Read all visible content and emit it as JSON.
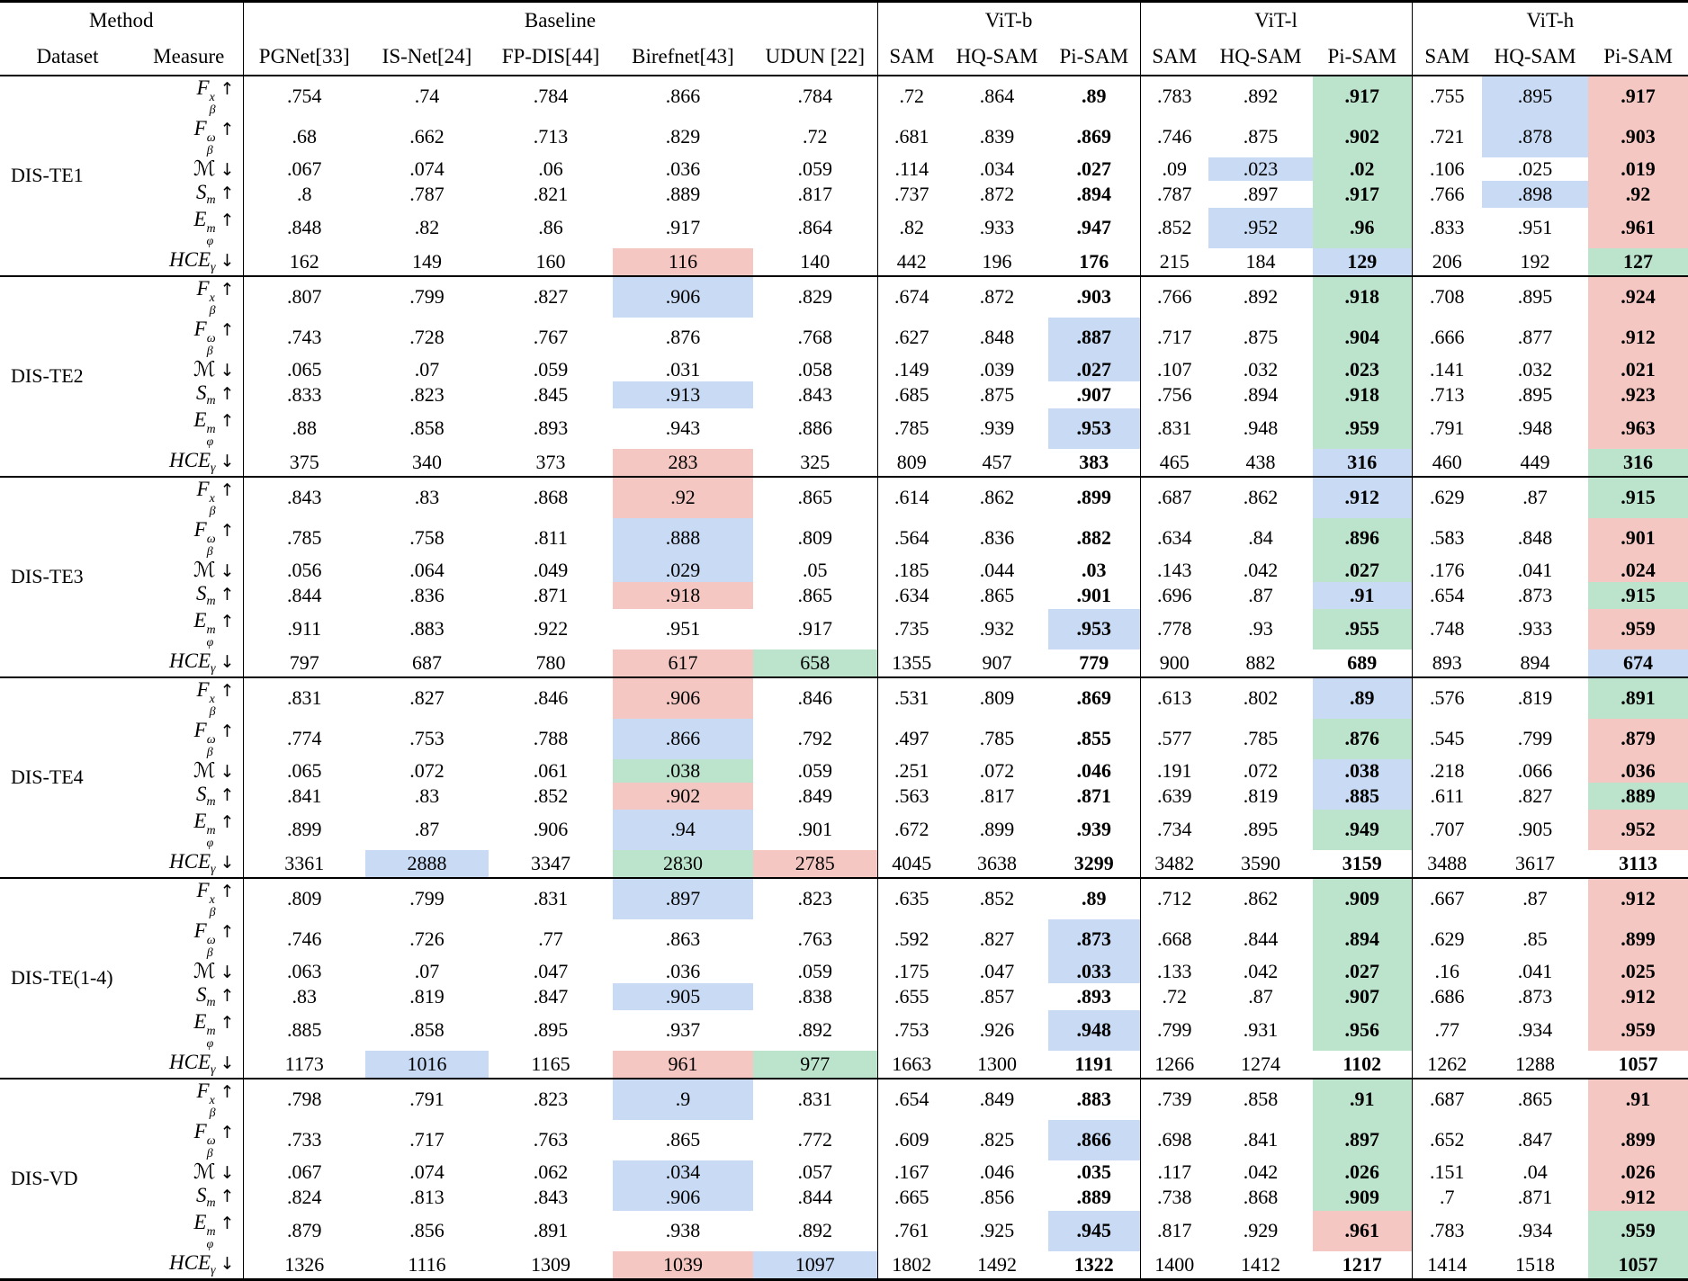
{
  "header": {
    "method": "Method",
    "dataset": "Dataset",
    "measure": "Measure",
    "emphasized_method": "Pi-SAM",
    "groups": [
      {
        "label": "Baseline",
        "cols": [
          "PGNet[33]",
          "IS-Net[24]",
          "FP-DIS[44]",
          "Birefnet[43]",
          "UDUN [22]"
        ]
      },
      {
        "label": "ViT-b",
        "cols": [
          "SAM",
          "HQ-SAM",
          "Pi-SAM"
        ]
      },
      {
        "label": "ViT-l",
        "cols": [
          "SAM",
          "HQ-SAM",
          "Pi-SAM"
        ]
      },
      {
        "label": "ViT-h",
        "cols": [
          "SAM",
          "HQ-SAM",
          "Pi-SAM"
        ]
      }
    ]
  },
  "measures": [
    {
      "base": "F",
      "sup": "x",
      "sub": "β",
      "arrow": "↑"
    },
    {
      "base": "F",
      "sup": "ω",
      "sub": "β",
      "arrow": "↑"
    },
    {
      "base": "ℳ",
      "sup": "",
      "sub": "",
      "arrow": "↓"
    },
    {
      "base": "S",
      "sup": "",
      "sub": "m",
      "arrow": "↑"
    },
    {
      "base": "E",
      "sup": "m",
      "sub": "φ",
      "arrow": "↑"
    },
    {
      "base": "HCE",
      "sup": "",
      "sub": "γ",
      "arrow": "↓"
    }
  ],
  "highlight_colors": {
    "red": "#f4c7c2",
    "green": "#bce3cc",
    "blue": "#c8daf4"
  },
  "highlight_meaning": {
    "red": "best",
    "green": "second best",
    "blue": "third best"
  },
  "blocks": [
    {
      "dataset": "DIS-TE1",
      "rows": [
        {
          "values": [
            ".754",
            ".74",
            ".784",
            ".866",
            ".784",
            ".72",
            ".864",
            ".89",
            ".783",
            ".892",
            ".917",
            ".755",
            ".895",
            ".917"
          ],
          "hl": {
            "10": "green",
            "12": "blue",
            "13": "red"
          }
        },
        {
          "values": [
            ".68",
            ".662",
            ".713",
            ".829",
            ".72",
            ".681",
            ".839",
            ".869",
            ".746",
            ".875",
            ".902",
            ".721",
            ".878",
            ".903"
          ],
          "hl": {
            "10": "green",
            "12": "blue",
            "13": "red"
          }
        },
        {
          "values": [
            ".067",
            ".074",
            ".06",
            ".036",
            ".059",
            ".114",
            ".034",
            ".027",
            ".09",
            ".023",
            ".02",
            ".106",
            ".025",
            ".019"
          ],
          "hl": {
            "9": "blue",
            "10": "green",
            "13": "red"
          }
        },
        {
          "values": [
            ".8",
            ".787",
            ".821",
            ".889",
            ".817",
            ".737",
            ".872",
            ".894",
            ".787",
            ".897",
            ".917",
            ".766",
            ".898",
            ".92"
          ],
          "hl": {
            "10": "green",
            "12": "blue",
            "13": "red"
          }
        },
        {
          "values": [
            ".848",
            ".82",
            ".86",
            ".917",
            ".864",
            ".82",
            ".933",
            ".947",
            ".852",
            ".952",
            ".96",
            ".833",
            ".951",
            ".961"
          ],
          "hl": {
            "9": "blue",
            "10": "green",
            "13": "red"
          }
        },
        {
          "values": [
            "162",
            "149",
            "160",
            "116",
            "140",
            "442",
            "196",
            "176",
            "215",
            "184",
            "129",
            "206",
            "192",
            "127"
          ],
          "hl": {
            "3": "red",
            "10": "blue",
            "13": "green"
          }
        }
      ]
    },
    {
      "dataset": "DIS-TE2",
      "rows": [
        {
          "values": [
            ".807",
            ".799",
            ".827",
            ".906",
            ".829",
            ".674",
            ".872",
            ".903",
            ".766",
            ".892",
            ".918",
            ".708",
            ".895",
            ".924"
          ],
          "hl": {
            "3": "blue",
            "10": "green",
            "13": "red"
          }
        },
        {
          "values": [
            ".743",
            ".728",
            ".767",
            ".876",
            ".768",
            ".627",
            ".848",
            ".887",
            ".717",
            ".875",
            ".904",
            ".666",
            ".877",
            ".912"
          ],
          "hl": {
            "7": "blue",
            "10": "green",
            "13": "red"
          }
        },
        {
          "values": [
            ".065",
            ".07",
            ".059",
            ".031",
            ".058",
            ".149",
            ".039",
            ".027",
            ".107",
            ".032",
            ".023",
            ".141",
            ".032",
            ".021"
          ],
          "hl": {
            "7": "blue",
            "10": "green",
            "13": "red"
          }
        },
        {
          "values": [
            ".833",
            ".823",
            ".845",
            ".913",
            ".843",
            ".685",
            ".875",
            ".907",
            ".756",
            ".894",
            ".918",
            ".713",
            ".895",
            ".923"
          ],
          "hl": {
            "3": "blue",
            "10": "green",
            "13": "red"
          }
        },
        {
          "values": [
            ".88",
            ".858",
            ".893",
            ".943",
            ".886",
            ".785",
            ".939",
            ".953",
            ".831",
            ".948",
            ".959",
            ".791",
            ".948",
            ".963"
          ],
          "hl": {
            "7": "blue",
            "10": "green",
            "13": "red"
          }
        },
        {
          "values": [
            "375",
            "340",
            "373",
            "283",
            "325",
            "809",
            "457",
            "383",
            "465",
            "438",
            "316",
            "460",
            "449",
            "316"
          ],
          "hl": {
            "3": "red",
            "10": "blue",
            "13": "green"
          }
        }
      ]
    },
    {
      "dataset": "DIS-TE3",
      "rows": [
        {
          "values": [
            ".843",
            ".83",
            ".868",
            ".92",
            ".865",
            ".614",
            ".862",
            ".899",
            ".687",
            ".862",
            ".912",
            ".629",
            ".87",
            ".915"
          ],
          "hl": {
            "3": "red",
            "10": "blue",
            "13": "green"
          }
        },
        {
          "values": [
            ".785",
            ".758",
            ".811",
            ".888",
            ".809",
            ".564",
            ".836",
            ".882",
            ".634",
            ".84",
            ".896",
            ".583",
            ".848",
            ".901"
          ],
          "hl": {
            "3": "blue",
            "10": "green",
            "13": "red"
          }
        },
        {
          "values": [
            ".056",
            ".064",
            ".049",
            ".029",
            ".05",
            ".185",
            ".044",
            ".03",
            ".143",
            ".042",
            ".027",
            ".176",
            ".041",
            ".024"
          ],
          "hl": {
            "3": "blue",
            "10": "green",
            "13": "red"
          }
        },
        {
          "values": [
            ".844",
            ".836",
            ".871",
            ".918",
            ".865",
            ".634",
            ".865",
            ".901",
            ".696",
            ".87",
            ".91",
            ".654",
            ".873",
            ".915"
          ],
          "hl": {
            "3": "red",
            "10": "blue",
            "13": "green"
          }
        },
        {
          "values": [
            ".911",
            ".883",
            ".922",
            ".951",
            ".917",
            ".735",
            ".932",
            ".953",
            ".778",
            ".93",
            ".955",
            ".748",
            ".933",
            ".959"
          ],
          "hl": {
            "7": "blue",
            "10": "green",
            "13": "red"
          }
        },
        {
          "values": [
            "797",
            "687",
            "780",
            "617",
            "658",
            "1355",
            "907",
            "779",
            "900",
            "882",
            "689",
            "893",
            "894",
            "674"
          ],
          "hl": {
            "3": "red",
            "4": "green",
            "13": "blue"
          }
        }
      ]
    },
    {
      "dataset": "DIS-TE4",
      "rows": [
        {
          "values": [
            ".831",
            ".827",
            ".846",
            ".906",
            ".846",
            ".531",
            ".809",
            ".869",
            ".613",
            ".802",
            ".89",
            ".576",
            ".819",
            ".891"
          ],
          "hl": {
            "3": "red",
            "10": "blue",
            "13": "green"
          }
        },
        {
          "values": [
            ".774",
            ".753",
            ".788",
            ".866",
            ".792",
            ".497",
            ".785",
            ".855",
            ".577",
            ".785",
            ".876",
            ".545",
            ".799",
            ".879"
          ],
          "hl": {
            "3": "blue",
            "10": "green",
            "13": "red"
          }
        },
        {
          "values": [
            ".065",
            ".072",
            ".061",
            ".038",
            ".059",
            ".251",
            ".072",
            ".046",
            ".191",
            ".072",
            ".038",
            ".218",
            ".066",
            ".036"
          ],
          "hl": {
            "3": "green",
            "10": "blue",
            "13": "red"
          }
        },
        {
          "values": [
            ".841",
            ".83",
            ".852",
            ".902",
            ".849",
            ".563",
            ".817",
            ".871",
            ".639",
            ".819",
            ".885",
            ".611",
            ".827",
            ".889"
          ],
          "hl": {
            "3": "red",
            "10": "blue",
            "13": "green"
          }
        },
        {
          "values": [
            ".899",
            ".87",
            ".906",
            ".94",
            ".901",
            ".672",
            ".899",
            ".939",
            ".734",
            ".895",
            ".949",
            ".707",
            ".905",
            ".952"
          ],
          "hl": {
            "3": "blue",
            "10": "green",
            "13": "red"
          }
        },
        {
          "values": [
            "3361",
            "2888",
            "3347",
            "2830",
            "2785",
            "4045",
            "3638",
            "3299",
            "3482",
            "3590",
            "3159",
            "3488",
            "3617",
            "3113"
          ],
          "hl": {
            "1": "blue",
            "3": "green",
            "4": "red"
          }
        }
      ]
    },
    {
      "dataset": "DIS-TE(1-4)",
      "rows": [
        {
          "values": [
            ".809",
            ".799",
            ".831",
            ".897",
            ".823",
            ".635",
            ".852",
            ".89",
            ".712",
            ".862",
            ".909",
            ".667",
            ".87",
            ".912"
          ],
          "hl": {
            "3": "blue",
            "10": "green",
            "13": "red"
          }
        },
        {
          "values": [
            ".746",
            ".726",
            ".77",
            ".863",
            ".763",
            ".592",
            ".827",
            ".873",
            ".668",
            ".844",
            ".894",
            ".629",
            ".85",
            ".899"
          ],
          "hl": {
            "7": "blue",
            "10": "green",
            "13": "red"
          }
        },
        {
          "values": [
            ".063",
            ".07",
            ".047",
            ".036",
            ".059",
            ".175",
            ".047",
            ".033",
            ".133",
            ".042",
            ".027",
            ".16",
            ".041",
            ".025"
          ],
          "hl": {
            "7": "blue",
            "10": "green",
            "13": "red"
          }
        },
        {
          "values": [
            ".83",
            ".819",
            ".847",
            ".905",
            ".838",
            ".655",
            ".857",
            ".893",
            ".72",
            ".87",
            ".907",
            ".686",
            ".873",
            ".912"
          ],
          "hl": {
            "3": "blue",
            "10": "green",
            "13": "red"
          }
        },
        {
          "values": [
            ".885",
            ".858",
            ".895",
            ".937",
            ".892",
            ".753",
            ".926",
            ".948",
            ".799",
            ".931",
            ".956",
            ".77",
            ".934",
            ".959"
          ],
          "hl": {
            "7": "blue",
            "10": "green",
            "13": "red"
          }
        },
        {
          "values": [
            "1173",
            "1016",
            "1165",
            "961",
            "977",
            "1663",
            "1300",
            "1191",
            "1266",
            "1274",
            "1102",
            "1262",
            "1288",
            "1057"
          ],
          "hl": {
            "1": "blue",
            "3": "red",
            "4": "green"
          }
        }
      ]
    },
    {
      "dataset": "DIS-VD",
      "rows": [
        {
          "values": [
            ".798",
            ".791",
            ".823",
            ".9",
            ".831",
            ".654",
            ".849",
            ".883",
            ".739",
            ".858",
            ".91",
            ".687",
            ".865",
            ".91"
          ],
          "hl": {
            "3": "blue",
            "10": "green",
            "13": "red"
          }
        },
        {
          "values": [
            ".733",
            ".717",
            ".763",
            ".865",
            ".772",
            ".609",
            ".825",
            ".866",
            ".698",
            ".841",
            ".897",
            ".652",
            ".847",
            ".899"
          ],
          "hl": {
            "7": "blue",
            "10": "green",
            "13": "red"
          }
        },
        {
          "values": [
            ".067",
            ".074",
            ".062",
            ".034",
            ".057",
            ".167",
            ".046",
            ".035",
            ".117",
            ".042",
            ".026",
            ".151",
            ".04",
            ".026"
          ],
          "hl": {
            "3": "blue",
            "10": "green",
            "13": "red"
          }
        },
        {
          "values": [
            ".824",
            ".813",
            ".843",
            ".906",
            ".844",
            ".665",
            ".856",
            ".889",
            ".738",
            ".868",
            ".909",
            ".7",
            ".871",
            ".912"
          ],
          "hl": {
            "3": "blue",
            "10": "green",
            "13": "red"
          }
        },
        {
          "values": [
            ".879",
            ".856",
            ".891",
            ".938",
            ".892",
            ".761",
            ".925",
            ".945",
            ".817",
            ".929",
            ".961",
            ".783",
            ".934",
            ".959"
          ],
          "hl": {
            "7": "blue",
            "10": "red",
            "13": "green"
          }
        },
        {
          "values": [
            "1326",
            "1116",
            "1309",
            "1039",
            "1097",
            "1802",
            "1492",
            "1322",
            "1400",
            "1412",
            "1217",
            "1414",
            "1518",
            "1057"
          ],
          "hl": {
            "3": "red",
            "4": "blue",
            "13": "green"
          }
        }
      ]
    }
  ]
}
